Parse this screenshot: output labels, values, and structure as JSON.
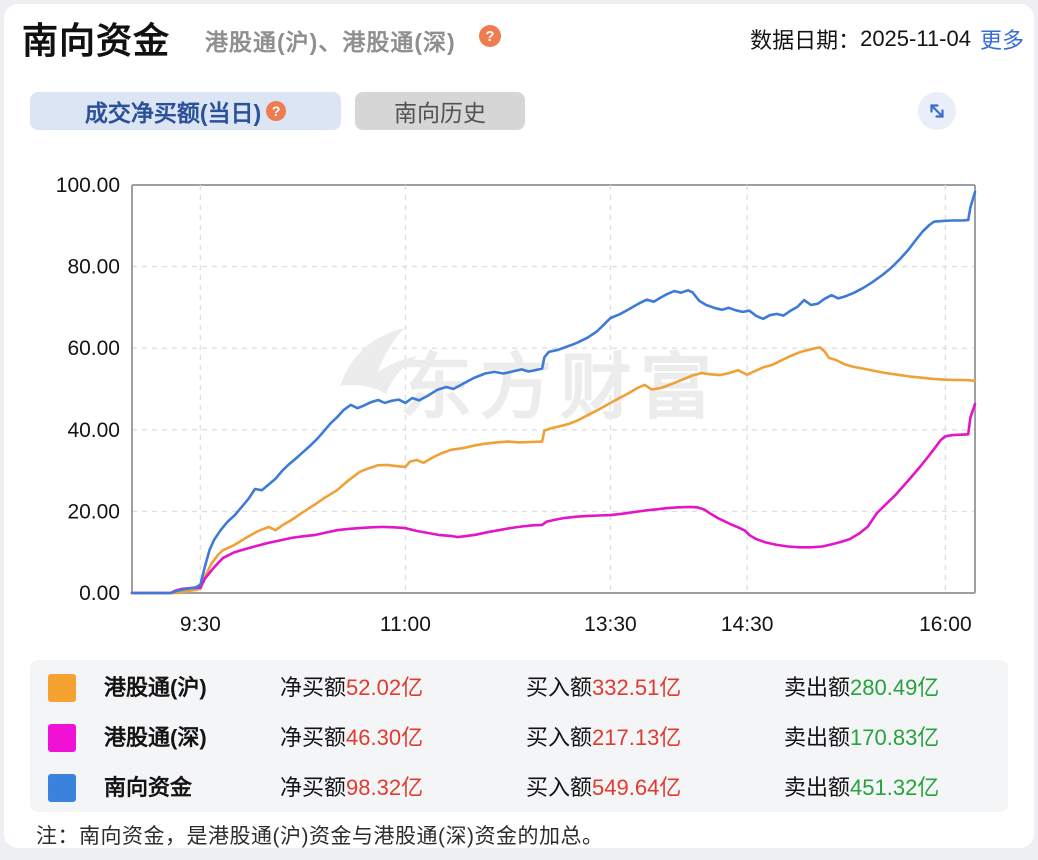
{
  "header": {
    "title": "南向资金",
    "subtitle": "港股通(沪)、港股通(深)",
    "help_icon": "question-mark",
    "date_label": "数据日期：",
    "date": "2025-11-04",
    "more_label": "更多"
  },
  "tabs": [
    {
      "label": "成交净买额(当日)",
      "active": true,
      "has_help": true
    },
    {
      "label": "南向历史",
      "active": false
    }
  ],
  "watermark": "东方财富",
  "colors": {
    "sh_line": "#efa136",
    "sz_line": "#e315c8",
    "total_line": "#3e7bd7",
    "value_red": "#e23a2e",
    "value_green": "#28a23c",
    "active_tab_bg": "#dce5f4",
    "active_tab_text": "#2b5199"
  },
  "chart_data": {
    "type": "line",
    "title": "成交净买额(当日)",
    "xlabel": "",
    "ylabel": "亿",
    "grid": true,
    "legend_position": "bottom",
    "x_axis": {
      "domain": [
        0,
        370
      ],
      "unit": "trading-minutes-from-9:00 (lunch 12:00-13:00 collapsed)",
      "ticks": [
        {
          "label": "9:30",
          "minute": 30
        },
        {
          "label": "11:00",
          "minute": 120
        },
        {
          "label": "13:30",
          "minute": 210
        },
        {
          "label": "14:30",
          "minute": 270
        },
        {
          "label": "16:00",
          "minute": 357
        }
      ]
    },
    "y_axis": {
      "min": 0,
      "max": 100,
      "tick_labels": [
        "100.00",
        "80.00",
        "60.00",
        "40.00",
        "20.00",
        "0.00"
      ]
    },
    "series": [
      {
        "id": "hgt-sh",
        "name": "港股通(沪)",
        "color": "#efa136",
        "final_value": 52.02,
        "points": [
          [
            0,
            0
          ],
          [
            20,
            0
          ],
          [
            25,
            0.5
          ],
          [
            30,
            1
          ],
          [
            32,
            4
          ],
          [
            35,
            7.3
          ],
          [
            38,
            9.5
          ],
          [
            40,
            10.5
          ],
          [
            45,
            11.8
          ],
          [
            50,
            13.5
          ],
          [
            55,
            15.1
          ],
          [
            60,
            16.2
          ],
          [
            63,
            15.4
          ],
          [
            66,
            16.6
          ],
          [
            70,
            17.9
          ],
          [
            75,
            19.8
          ],
          [
            80,
            21.6
          ],
          [
            85,
            23.5
          ],
          [
            90,
            25.2
          ],
          [
            95,
            27.6
          ],
          [
            100,
            29.7
          ],
          [
            104,
            30.6
          ],
          [
            108,
            31.3
          ],
          [
            112,
            31.4
          ],
          [
            116,
            31.1
          ],
          [
            120,
            30.9
          ],
          [
            122,
            32.2
          ],
          [
            125,
            32.6
          ],
          [
            128,
            31.9
          ],
          [
            132,
            33.2
          ],
          [
            136,
            34.3
          ],
          [
            140,
            35.1
          ],
          [
            145,
            35.5
          ],
          [
            150,
            36.1
          ],
          [
            155,
            36.6
          ],
          [
            160,
            36.9
          ],
          [
            165,
            37.1
          ],
          [
            170,
            36.9
          ],
          [
            175,
            37
          ],
          [
            180,
            37.1
          ],
          [
            181,
            39.8
          ],
          [
            184,
            40.4
          ],
          [
            188,
            40.9
          ],
          [
            192,
            41.5
          ],
          [
            196,
            42.4
          ],
          [
            200,
            43.6
          ],
          [
            205,
            45
          ],
          [
            210,
            46.6
          ],
          [
            214,
            47.8
          ],
          [
            218,
            49
          ],
          [
            222,
            50.3
          ],
          [
            225,
            51
          ],
          [
            228,
            49.9
          ],
          [
            231,
            50.1
          ],
          [
            234,
            50.6
          ],
          [
            238,
            51.5
          ],
          [
            242,
            52.4
          ],
          [
            246,
            53.3
          ],
          [
            250,
            53.9
          ],
          [
            254,
            53.6
          ],
          [
            258,
            53.4
          ],
          [
            262,
            53.9
          ],
          [
            266,
            54.6
          ],
          [
            270,
            53.5
          ],
          [
            273,
            54.3
          ],
          [
            277,
            55.3
          ],
          [
            281,
            55.9
          ],
          [
            285,
            57
          ],
          [
            289,
            58.1
          ],
          [
            293,
            59
          ],
          [
            297,
            59.6
          ],
          [
            300,
            60
          ],
          [
            302,
            60.2
          ],
          [
            304,
            59.2
          ],
          [
            306,
            57.6
          ],
          [
            309,
            57.1
          ],
          [
            313,
            56
          ],
          [
            317,
            55.4
          ],
          [
            321,
            55
          ],
          [
            326,
            54.4
          ],
          [
            331,
            53.9
          ],
          [
            336,
            53.5
          ],
          [
            341,
            53.1
          ],
          [
            346,
            52.8
          ],
          [
            351,
            52.5
          ],
          [
            356,
            52.3
          ],
          [
            361,
            52.2
          ],
          [
            366,
            52.2
          ],
          [
            370,
            52.02
          ]
        ]
      },
      {
        "id": "hgt-sz",
        "name": "港股通(深)",
        "color": "#e315c8",
        "final_value": 46.3,
        "points": [
          [
            0,
            0
          ],
          [
            17,
            0
          ],
          [
            19,
            0.6
          ],
          [
            22,
            1
          ],
          [
            26,
            1.2
          ],
          [
            30,
            1.3
          ],
          [
            32,
            3.5
          ],
          [
            35,
            5.6
          ],
          [
            38,
            7.5
          ],
          [
            40,
            8.6
          ],
          [
            45,
            10
          ],
          [
            50,
            10.8
          ],
          [
            55,
            11.6
          ],
          [
            60,
            12.3
          ],
          [
            65,
            12.9
          ],
          [
            70,
            13.5
          ],
          [
            75,
            13.9
          ],
          [
            80,
            14.2
          ],
          [
            85,
            14.8
          ],
          [
            90,
            15.4
          ],
          [
            95,
            15.7
          ],
          [
            100,
            15.9
          ],
          [
            105,
            16.1
          ],
          [
            110,
            16.2
          ],
          [
            115,
            16.1
          ],
          [
            120,
            15.9
          ],
          [
            125,
            15.2
          ],
          [
            130,
            14.7
          ],
          [
            135,
            14.2
          ],
          [
            140,
            14
          ],
          [
            143,
            13.7
          ],
          [
            147,
            14
          ],
          [
            151,
            14.3
          ],
          [
            156,
            14.9
          ],
          [
            161,
            15.4
          ],
          [
            166,
            15.9
          ],
          [
            171,
            16.3
          ],
          [
            176,
            16.6
          ],
          [
            180,
            16.7
          ],
          [
            182,
            17.5
          ],
          [
            186,
            18
          ],
          [
            190,
            18.4
          ],
          [
            195,
            18.7
          ],
          [
            200,
            18.9
          ],
          [
            205,
            19
          ],
          [
            210,
            19.1
          ],
          [
            215,
            19.4
          ],
          [
            220,
            19.8
          ],
          [
            225,
            20.2
          ],
          [
            230,
            20.5
          ],
          [
            235,
            20.8
          ],
          [
            240,
            21
          ],
          [
            245,
            21.1
          ],
          [
            248,
            21
          ],
          [
            251,
            20.5
          ],
          [
            254,
            19.4
          ],
          [
            257,
            18.4
          ],
          [
            260,
            17.6
          ],
          [
            263,
            16.8
          ],
          [
            266,
            16.1
          ],
          [
            269,
            15.3
          ],
          [
            271,
            14.2
          ],
          [
            274,
            13.2
          ],
          [
            278,
            12.4
          ],
          [
            283,
            11.8
          ],
          [
            288,
            11.4
          ],
          [
            293,
            11.2
          ],
          [
            298,
            11.2
          ],
          [
            303,
            11.4
          ],
          [
            307,
            11.9
          ],
          [
            311,
            12.5
          ],
          [
            315,
            13.2
          ],
          [
            319,
            14.5
          ],
          [
            323,
            16.3
          ],
          [
            327,
            19.6
          ],
          [
            331,
            21.8
          ],
          [
            335,
            24
          ],
          [
            339,
            26.5
          ],
          [
            342,
            28.4
          ],
          [
            346,
            31
          ],
          [
            350,
            33.8
          ],
          [
            353,
            36
          ],
          [
            355,
            37.5
          ],
          [
            357,
            38.4
          ],
          [
            360,
            38.7
          ],
          [
            364,
            38.8
          ],
          [
            367,
            38.9
          ],
          [
            368,
            43
          ],
          [
            370,
            46.3
          ]
        ]
      },
      {
        "id": "total",
        "name": "南向资金",
        "color": "#3e7bd7",
        "final_value": 98.32,
        "points": [
          [
            0,
            0
          ],
          [
            17,
            0
          ],
          [
            20,
            0.6
          ],
          [
            24,
            1
          ],
          [
            28,
            1.4
          ],
          [
            30,
            2
          ],
          [
            32,
            6.5
          ],
          [
            34,
            10.5
          ],
          [
            36,
            13
          ],
          [
            39,
            15.5
          ],
          [
            42,
            17.5
          ],
          [
            45,
            19
          ],
          [
            48,
            21
          ],
          [
            51,
            23
          ],
          [
            54,
            25.5
          ],
          [
            57,
            25.2
          ],
          [
            60,
            26.6
          ],
          [
            63,
            28
          ],
          [
            66,
            30
          ],
          [
            69,
            31.6
          ],
          [
            72,
            33
          ],
          [
            75,
            34.5
          ],
          [
            78,
            36
          ],
          [
            81,
            37.6
          ],
          [
            84,
            39.5
          ],
          [
            87,
            41.5
          ],
          [
            90,
            43.1
          ],
          [
            93,
            44.9
          ],
          [
            96,
            46.1
          ],
          [
            99,
            45.3
          ],
          [
            102,
            46
          ],
          [
            105,
            46.8
          ],
          [
            108,
            47.3
          ],
          [
            111,
            46.6
          ],
          [
            114,
            47.1
          ],
          [
            117,
            47.4
          ],
          [
            120,
            46.6
          ],
          [
            123,
            47.8
          ],
          [
            126,
            47.2
          ],
          [
            130,
            48.4
          ],
          [
            134,
            49.8
          ],
          [
            138,
            50.5
          ],
          [
            141,
            50
          ],
          [
            145,
            51.2
          ],
          [
            150,
            52.7
          ],
          [
            155,
            53.8
          ],
          [
            159,
            54.2
          ],
          [
            163,
            53.8
          ],
          [
            167,
            54.3
          ],
          [
            171,
            54.8
          ],
          [
            174,
            54.3
          ],
          [
            177,
            54.6
          ],
          [
            180,
            55
          ],
          [
            181,
            57.8
          ],
          [
            183,
            59.1
          ],
          [
            187,
            59.6
          ],
          [
            190,
            60.2
          ],
          [
            193,
            60.8
          ],
          [
            196,
            61.5
          ],
          [
            200,
            62.6
          ],
          [
            204,
            64.1
          ],
          [
            207,
            65.7
          ],
          [
            210,
            67.4
          ],
          [
            214,
            68.3
          ],
          [
            218,
            69.5
          ],
          [
            222,
            70.8
          ],
          [
            226,
            71.9
          ],
          [
            229,
            71.4
          ],
          [
            232,
            72.4
          ],
          [
            235,
            73.3
          ],
          [
            238,
            74
          ],
          [
            241,
            73.6
          ],
          [
            244,
            74.2
          ],
          [
            246,
            73.7
          ],
          [
            249,
            71.6
          ],
          [
            252,
            70.6
          ],
          [
            256,
            69.8
          ],
          [
            259,
            69.4
          ],
          [
            262,
            69.9
          ],
          [
            265,
            69.3
          ],
          [
            268,
            68.9
          ],
          [
            271,
            69.2
          ],
          [
            274,
            67.9
          ],
          [
            277,
            67.2
          ],
          [
            280,
            68.1
          ],
          [
            283,
            68.4
          ],
          [
            286,
            68
          ],
          [
            289,
            69.2
          ],
          [
            292,
            70.1
          ],
          [
            295,
            71.8
          ],
          [
            298,
            70.6
          ],
          [
            301,
            70.9
          ],
          [
            304,
            72.1
          ],
          [
            307,
            73
          ],
          [
            310,
            72.2
          ],
          [
            313,
            72.7
          ],
          [
            317,
            73.6
          ],
          [
            321,
            74.8
          ],
          [
            325,
            76.2
          ],
          [
            329,
            77.8
          ],
          [
            333,
            79.6
          ],
          [
            337,
            81.8
          ],
          [
            341,
            84.3
          ],
          [
            344,
            86.5
          ],
          [
            347,
            88.6
          ],
          [
            350,
            90.2
          ],
          [
            352,
            91
          ],
          [
            356,
            91.2
          ],
          [
            360,
            91.3
          ],
          [
            364,
            91.3
          ],
          [
            367,
            91.4
          ],
          [
            368,
            94.5
          ],
          [
            370,
            98.32
          ]
        ]
      }
    ]
  },
  "legend": {
    "rows": [
      {
        "name": "港股通(沪)",
        "color": "#f5a231",
        "net_label": "净买额",
        "net_value": "52.02亿",
        "buy_label": "买入额",
        "buy_value": "332.51亿",
        "sell_label": "卖出额",
        "sell_value": "280.49亿"
      },
      {
        "name": "港股通(深)",
        "color": "#f011d6",
        "net_label": "净买额",
        "net_value": "46.30亿",
        "buy_label": "买入额",
        "buy_value": "217.13亿",
        "sell_label": "卖出额",
        "sell_value": "170.83亿"
      },
      {
        "name": "南向资金",
        "color": "#3b82dd",
        "net_label": "净买额",
        "net_value": "98.32亿",
        "buy_label": "买入额",
        "buy_value": "549.64亿",
        "sell_label": "卖出额",
        "sell_value": "451.32亿"
      }
    ]
  },
  "note": "注：南向资金，是港股通(沪)资金与港股通(深)资金的加总。"
}
